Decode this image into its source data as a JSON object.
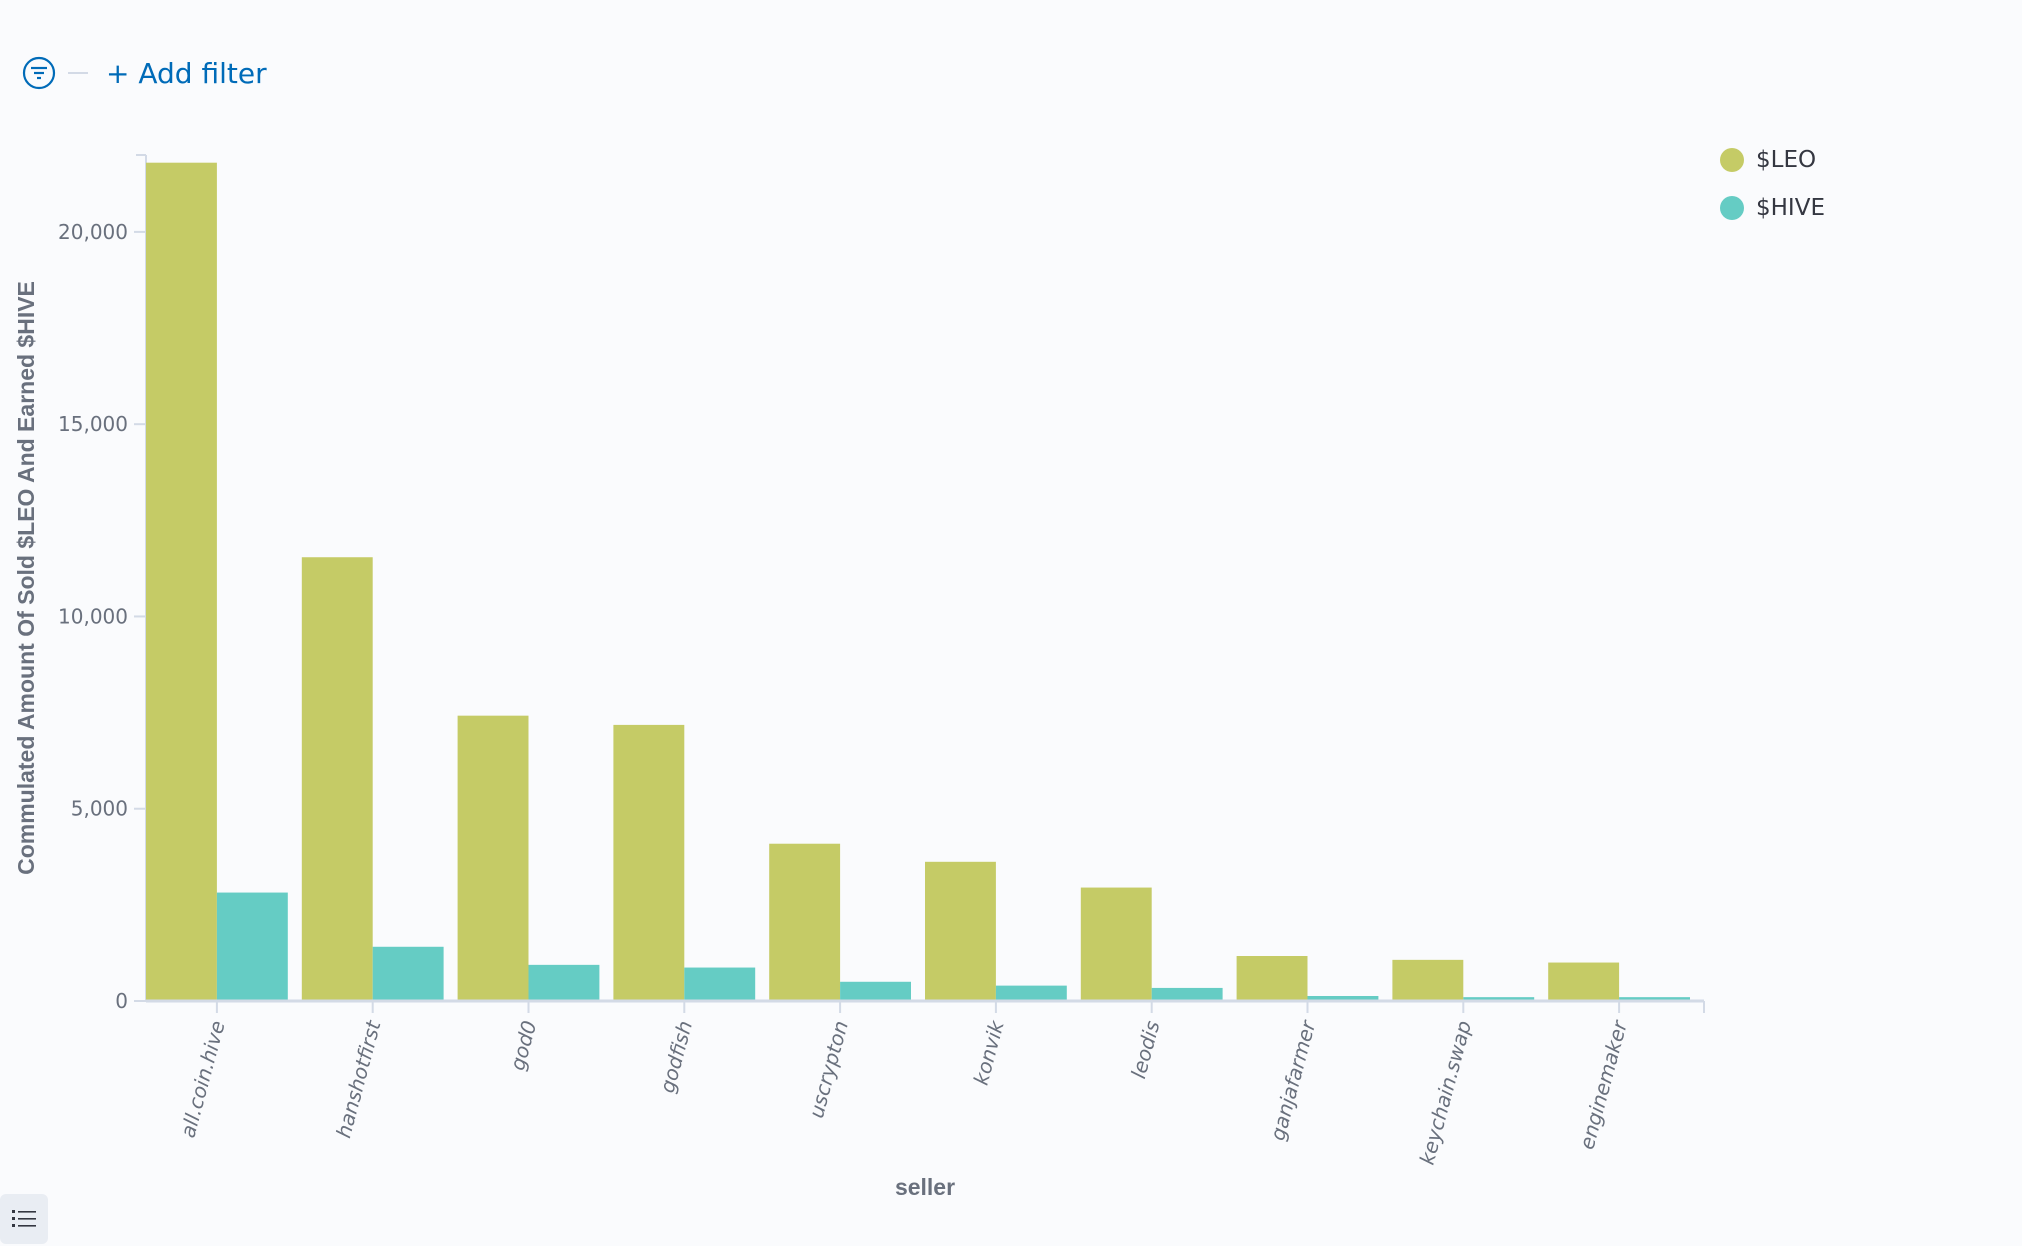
{
  "filter_bar": {
    "add_filter_label": "+ Add filter",
    "icon": "filter-icon"
  },
  "bottom_button": {
    "icon": "list-icon"
  },
  "colors": {
    "leo": "#c5cb66",
    "hive": "#65ccc4",
    "accent": "#006bb8"
  },
  "chart_data": {
    "type": "bar",
    "xlabel": "seller",
    "ylabel": "Commulated Amount Of Sold $LEO And Earned $HIVE",
    "categories": [
      "all.coin.hive",
      "hanshotfirst",
      "god0",
      "godfish",
      "uscrypton",
      "konvik",
      "leodis",
      "ganjafarmer",
      "keychain.swap",
      "enginemaker"
    ],
    "series": [
      {
        "name": "$LEO",
        "values": [
          21800,
          11540,
          7420,
          7180,
          4090,
          3620,
          2950,
          1170,
          1070,
          1000
        ]
      },
      {
        "name": "$HIVE",
        "values": [
          2820,
          1410,
          940,
          870,
          500,
          400,
          340,
          130,
          100,
          100
        ]
      }
    ],
    "ylim": [
      0,
      22000
    ],
    "yticks": [
      0,
      5000,
      10000,
      15000,
      20000
    ],
    "ytick_labels": [
      "0",
      "5,000",
      "10,000",
      "15,000",
      "20,000"
    ],
    "grid": false,
    "legend": "top-right"
  }
}
